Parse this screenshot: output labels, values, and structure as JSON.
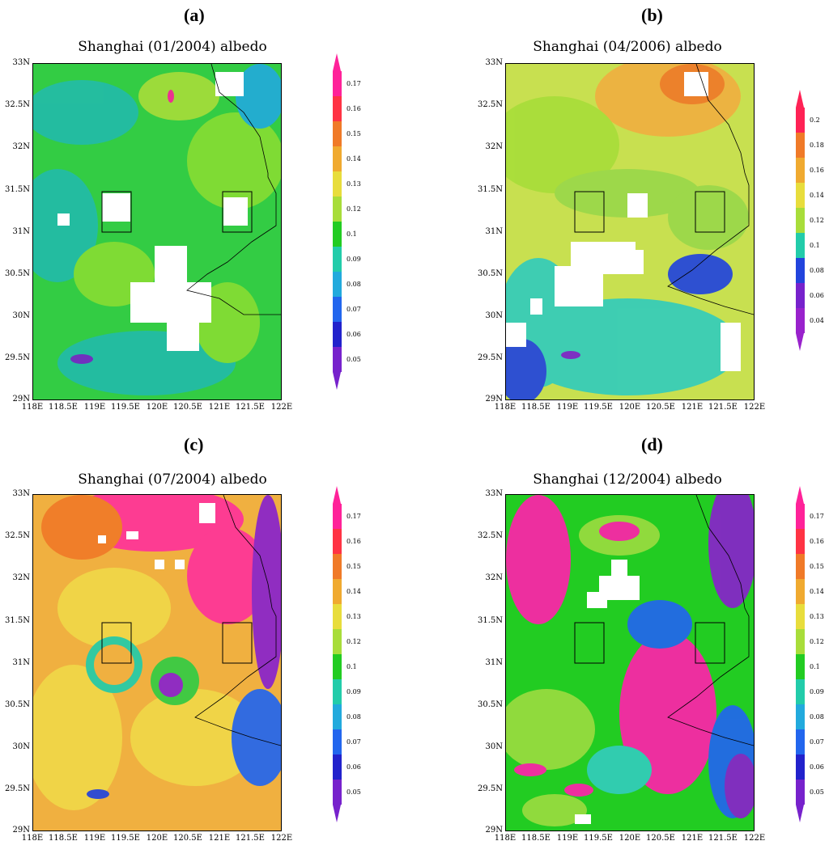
{
  "panels": [
    {
      "letter": "(a)",
      "title": "Shanghai (01/2004) albedo",
      "colorbar_labels": [
        "0.17",
        "0.16",
        "0.15",
        "0.14",
        "0.13",
        "0.12",
        "0.1",
        "0.09",
        "0.08",
        "0.07",
        "0.06",
        "0.05"
      ],
      "dominant_colors": [
        "#33cc33",
        "#22bbaa",
        "#88dd33",
        "#ffffff"
      ]
    },
    {
      "letter": "(b)",
      "title": "Shanghai (04/2006) albedo",
      "colorbar_labels": [
        "0.2",
        "0.18",
        "0.16",
        "0.14",
        "0.12",
        "0.1",
        "0.08",
        "0.06",
        "0.04"
      ],
      "dominant_colors": [
        "#c8e050",
        "#9ad84a",
        "#33ccbb",
        "#ffffff"
      ]
    },
    {
      "letter": "(c)",
      "title": "Shanghai (07/2004) albedo",
      "colorbar_labels": [
        "0.17",
        "0.16",
        "0.15",
        "0.14",
        "0.13",
        "0.12",
        "0.1",
        "0.09",
        "0.08",
        "0.07",
        "0.06",
        "0.05"
      ],
      "dominant_colors": [
        "#f0b040",
        "#f0d848",
        "#ff3399",
        "#8822cc"
      ]
    },
    {
      "letter": "(d)",
      "title": "Shanghai (12/2004) albedo",
      "colorbar_labels": [
        "0.17",
        "0.16",
        "0.15",
        "0.14",
        "0.13",
        "0.12",
        "0.1",
        "0.09",
        "0.08",
        "0.07",
        "0.06",
        "0.05"
      ],
      "dominant_colors": [
        "#22cc22",
        "#ff22aa",
        "#9adc40",
        "#8822cc"
      ]
    }
  ],
  "axes": {
    "y_ticks": [
      "33N",
      "32.5N",
      "32N",
      "31.5N",
      "31N",
      "30.5N",
      "30N",
      "29.5N",
      "29N"
    ],
    "x_ticks": [
      "118E",
      "118.5E",
      "119E",
      "119.5E",
      "120E",
      "120.5E",
      "121E",
      "121.5E",
      "122E"
    ]
  },
  "colorbar_colors_12": [
    "#ff2299",
    "#ff3344",
    "#f07a28",
    "#f0aa30",
    "#e8dd3c",
    "#a8dd3a",
    "#22cc22",
    "#22ccaa",
    "#22aadd",
    "#2266ee",
    "#2222cc",
    "#7722cc"
  ],
  "colorbar_colors_9": [
    "#ff2255",
    "#f07a28",
    "#f0aa30",
    "#e8dd3c",
    "#a8dd3a",
    "#22ccaa",
    "#2244dd",
    "#7722cc",
    "#9922cc"
  ]
}
